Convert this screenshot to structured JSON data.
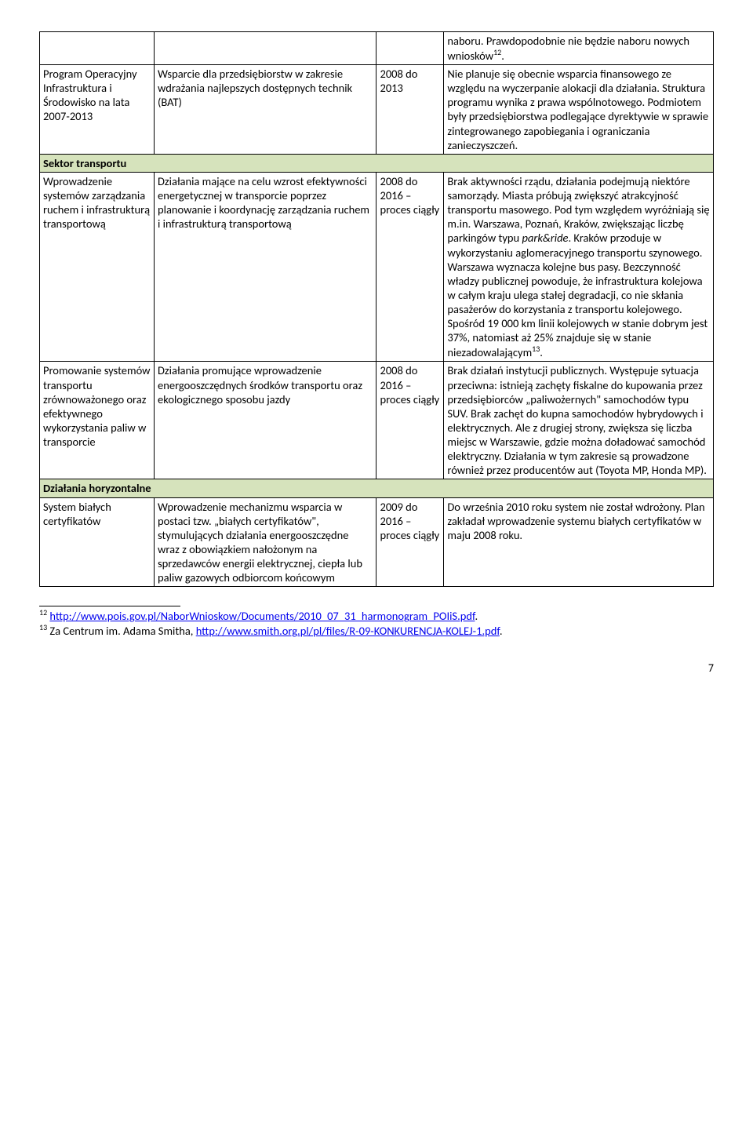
{
  "rows": [
    {
      "c1": "",
      "c2": "",
      "c3": "",
      "c4": "naboru. Prawdopodobnie nie będzie naboru nowych wniosków<span class='sup'>12</span>."
    },
    {
      "c1": "Program Operacyjny Infrastruktura i Środowisko na lata 2007-2013",
      "c2": "Wsparcie dla przedsiębiorstw w zakresie wdrażania najlepszych dostępnych technik (BAT)",
      "c3": "2008 do 2013",
      "c4": "Nie planuje się obecnie wsparcia finansowego ze względu na wyczerpanie alokacji dla działania. Struktura programu wynika z prawa wspólnotowego. Podmiotem były przedsiębiorstwa podlegające dyrektywie w sprawie zintegrowanego zapobiegania i ograniczania zanieczyszczeń."
    },
    {
      "section": "Sektor transportu"
    },
    {
      "c1": "Wprowadzenie systemów zarządzania ruchem i infrastrukturą transportową",
      "c2": "Działania mające na celu wzrost efektywności energetycznej w transporcie poprzez planowanie i koordynację zarządzania ruchem i infrastrukturą transportową",
      "c3": "2008 do 2016 – proces ciągły",
      "c4": "Brak aktywności rządu, działania podejmują niektóre samorządy. Miasta próbują zwiększyć atrakcyjność transportu masowego. Pod tym względem wyróżniają się m.in. Warszawa, Poznań, Kraków, zwiększając liczbę parkingów typu <span class='italic'>park&ride</span>. Kraków przoduje w wykorzystaniu aglomeracyjnego transportu szynowego. Warszawa wyznacza kolejne bus pasy. Bezczynność władzy publicznej powoduje, że infrastruktura kolejowa w całym kraju ulega stałej degradacji, co nie skłania pasażerów do korzystania z transportu kolejowego. Spośród 19 000 km linii kolejowych w stanie dobrym jest 37%, natomiast aż 25% znajduje się w stanie niezadowalającym<span class='sup'>13</span>."
    },
    {
      "c1": "Promowanie systemów transportu zrównoważonego oraz efektywnego wykorzystania paliw w transporcie",
      "c2": "Działania promujące wprowadzenie energooszczędnych środków transportu oraz ekologicznego sposobu jazdy",
      "c3": "2008 do 2016 – proces ciągły",
      "c4": "Brak działań instytucji publicznych. Występuje sytuacja przeciwna: istnieją zachęty fiskalne do kupowania przez przedsiębiorców „paliwożernych\" samochodów typu SUV. Brak zachęt do kupna samochodów hybrydowych i elektrycznych. Ale z drugiej strony, zwiększa się liczba miejsc w Warszawie, gdzie można doładować samochód elektryczny. Działania w tym zakresie są prowadzone również przez producentów aut (Toyota MP, Honda MP)."
    },
    {
      "section": "Działania horyzontalne"
    },
    {
      "c1": "System białych certyfikatów",
      "c2": "Wprowadzenie mechanizmu wsparcia w postaci tzw. „białych certyfikatów\", stymulujących działania energooszczędne wraz z obowiązkiem nałożonym na sprzedawców energii elektrycznej, ciepła lub paliw gazowych odbiorcom końcowym",
      "c3": "2009 do 2016 – proces ciągły",
      "c4": "Do września 2010 roku system nie został wdrożony. Plan zakładał wprowadzenie systemu białych certyfikatów w maju 2008 roku."
    }
  ],
  "footnotes": [
    {
      "num": "12",
      "html": "<a href='#'>http://www.pois.gov.pl/NaborWnioskow/Documents/2010_07_31_harmonogram_POIiS.pdf</a>."
    },
    {
      "num": "13",
      "html": "Za Centrum im. Adama Smitha, <a href='#'>http://www.smith.org.pl/pl/files/R-09-KONKURENCJA-KOLEJ-1.pdf</a>."
    }
  ],
  "pagenum": "7",
  "colors": {
    "section_bg": "#d6e3bc",
    "border": "#000000",
    "link": "#0000ff",
    "text": "#000000",
    "page_bg": "#ffffff"
  }
}
